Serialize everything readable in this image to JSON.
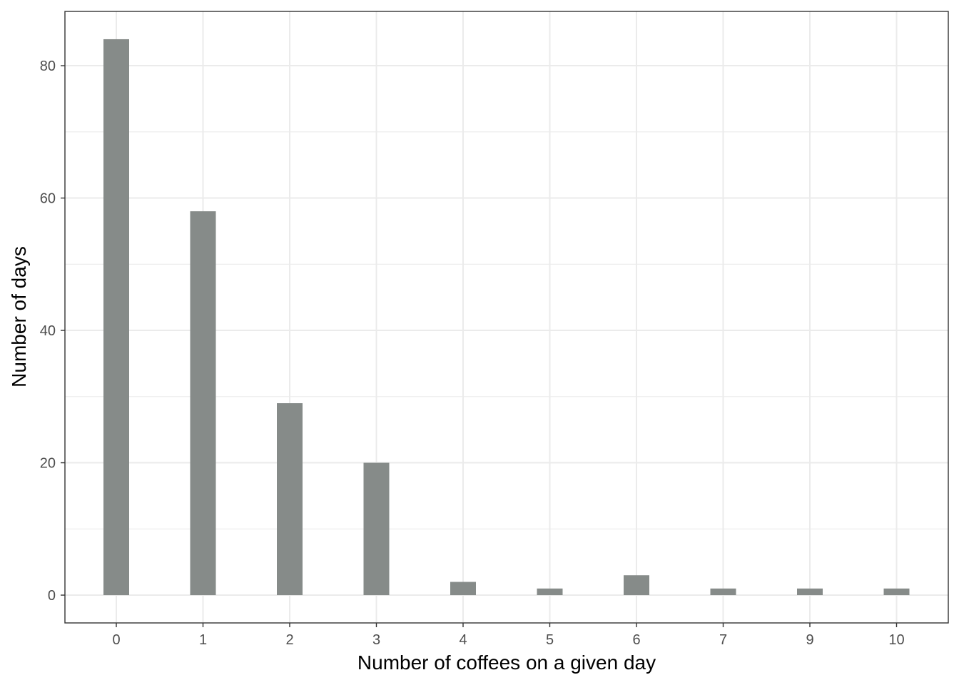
{
  "chart_data": {
    "type": "bar",
    "title": "",
    "xlabel": "Number of coffees on a given day",
    "ylabel": "Number of days",
    "categories": [
      "0",
      "1",
      "2",
      "3",
      "4",
      "5",
      "6",
      "7",
      "9",
      "10"
    ],
    "values": [
      84,
      58,
      29,
      20,
      2,
      1,
      3,
      1,
      1,
      1
    ],
    "ylim": [
      -4.2,
      88.2
    ],
    "y_ticks": [
      0,
      20,
      40,
      60,
      80
    ],
    "y_tick_labels": [
      "0",
      "20",
      "40",
      "60",
      "80"
    ],
    "y_minor_gridlines": [
      10,
      30,
      50,
      70
    ],
    "grid": true,
    "legend": "none",
    "colors": {
      "bar": "#868b89",
      "grid": "#ebebeb",
      "panel_border": "#333333",
      "tick_label": "#4d4d4d"
    }
  }
}
